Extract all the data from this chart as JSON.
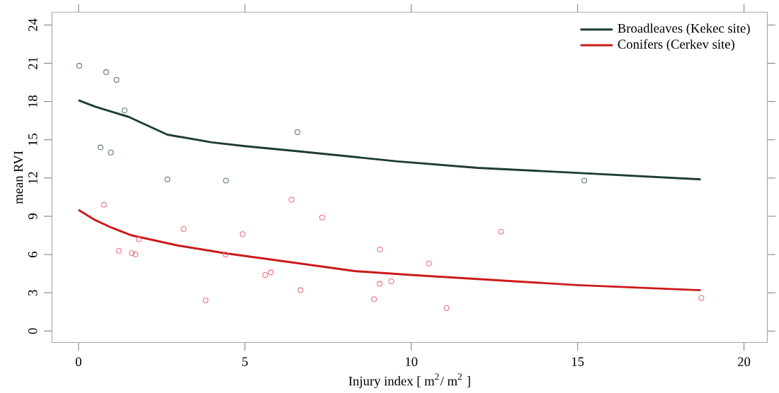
{
  "chart_data": {
    "type": "scatter",
    "xlabel": "Injury index [ m$^{2}$/ m$^{2}$ ]",
    "ylabel": "mean RVI",
    "xlim": [
      -0.8,
      20.7
    ],
    "ylim": [
      -0.9,
      25
    ],
    "xticks": [
      0,
      5,
      10,
      15,
      20
    ],
    "yticks": [
      0,
      3,
      6,
      9,
      12,
      15,
      18,
      21,
      24
    ],
    "grid": false,
    "legend": "top right",
    "series": [
      {
        "marker": "circle",
        "color": "#5f7676",
        "x": [
          0.02,
          0.83,
          1.14,
          1.38,
          0.66,
          0.97,
          2.67,
          4.43,
          6.58,
          15.2
        ],
        "values": [
          20.8,
          20.3,
          19.7,
          17.3,
          14.4,
          14.0,
          11.9,
          11.8,
          15.6,
          11.8
        ]
      },
      {
        "marker": "circle",
        "color": "#e8707a",
        "x": [
          0.76,
          1.21,
          1.6,
          1.71,
          1.81,
          3.16,
          3.82,
          4.42,
          4.93,
          5.61,
          5.78,
          6.4,
          6.67,
          7.32,
          8.88,
          9.05,
          9.06,
          9.4,
          10.53,
          11.06,
          12.7,
          18.72
        ],
        "values": [
          9.9,
          6.3,
          6.1,
          6.0,
          7.2,
          8.0,
          2.4,
          6.0,
          7.6,
          4.4,
          4.6,
          10.3,
          3.2,
          8.9,
          2.5,
          3.7,
          6.4,
          3.9,
          5.3,
          1.8,
          7.8,
          2.6
        ]
      },
      {
        "type": "line",
        "marker": "none",
        "name": "Broadleaves (Kekec site)",
        "color": "#1e3b38",
        "x": [
          0,
          0.5,
          1,
          1.5,
          2.67,
          4,
          5,
          6.6,
          9.6,
          12,
          15,
          18.7
        ],
        "values": [
          18.1,
          17.6,
          17.2,
          16.8,
          15.4,
          14.8,
          14.5,
          14.1,
          13.3,
          12.8,
          12.4,
          11.9
        ]
      },
      {
        "type": "line",
        "marker": "none",
        "name": "Conifers (Cerkev site)",
        "color": "#cc1a1a",
        "x": [
          0,
          0.5,
          1,
          1.6,
          3,
          4.4,
          5.8,
          8.3,
          10,
          12.5,
          15,
          18.7
        ],
        "values": [
          9.5,
          8.7,
          8.1,
          7.5,
          6.7,
          6.1,
          5.6,
          4.7,
          4.4,
          4.0,
          3.6,
          3.2
        ]
      }
    ]
  }
}
